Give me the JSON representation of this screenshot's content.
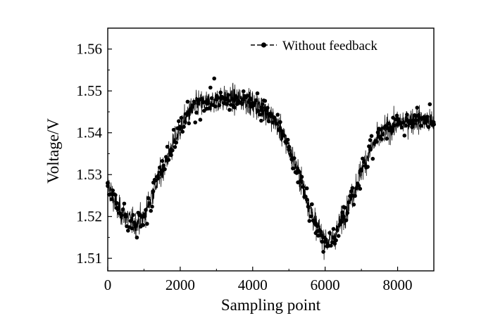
{
  "chart_data": {
    "type": "line",
    "title": "",
    "xlabel": "Sampling point",
    "ylabel": "Voltage/V",
    "xlim": [
      0,
      9000
    ],
    "ylim": [
      1.507,
      1.565
    ],
    "xticks": [
      0,
      2000,
      4000,
      6000,
      8000
    ],
    "xtick_labels": [
      "0",
      "2000",
      "4000",
      "6000",
      "8000"
    ],
    "yticks": [
      1.51,
      1.52,
      1.53,
      1.54,
      1.55,
      1.56
    ],
    "ytick_labels": [
      "1.51",
      "1.52",
      "1.53",
      "1.54",
      "1.55",
      "1.56"
    ],
    "grid": false,
    "legend_position": "top-right",
    "series": [
      {
        "name": "Without feedback",
        "color": "#000000",
        "marker": "circle",
        "line_style": "dashed-marker",
        "x": [
          0,
          250,
          500,
          750,
          1000,
          1250,
          1500,
          1750,
          2000,
          2250,
          2500,
          2750,
          3000,
          3250,
          3500,
          3750,
          4000,
          4250,
          4500,
          4750,
          5000,
          5250,
          5500,
          5750,
          6000,
          6250,
          6500,
          6750,
          7000,
          7250,
          7500,
          7750,
          8000,
          8250,
          8500,
          8750,
          9000
        ],
        "y": [
          1.528,
          1.522,
          1.52,
          1.518,
          1.52,
          1.526,
          1.531,
          1.536,
          1.541,
          1.545,
          1.547,
          1.547,
          1.548,
          1.548,
          1.548,
          1.548,
          1.547,
          1.546,
          1.544,
          1.541,
          1.536,
          1.531,
          1.524,
          1.518,
          1.514,
          1.515,
          1.52,
          1.525,
          1.531,
          1.536,
          1.539,
          1.541,
          1.542,
          1.543,
          1.543,
          1.543,
          1.542
        ]
      }
    ]
  }
}
